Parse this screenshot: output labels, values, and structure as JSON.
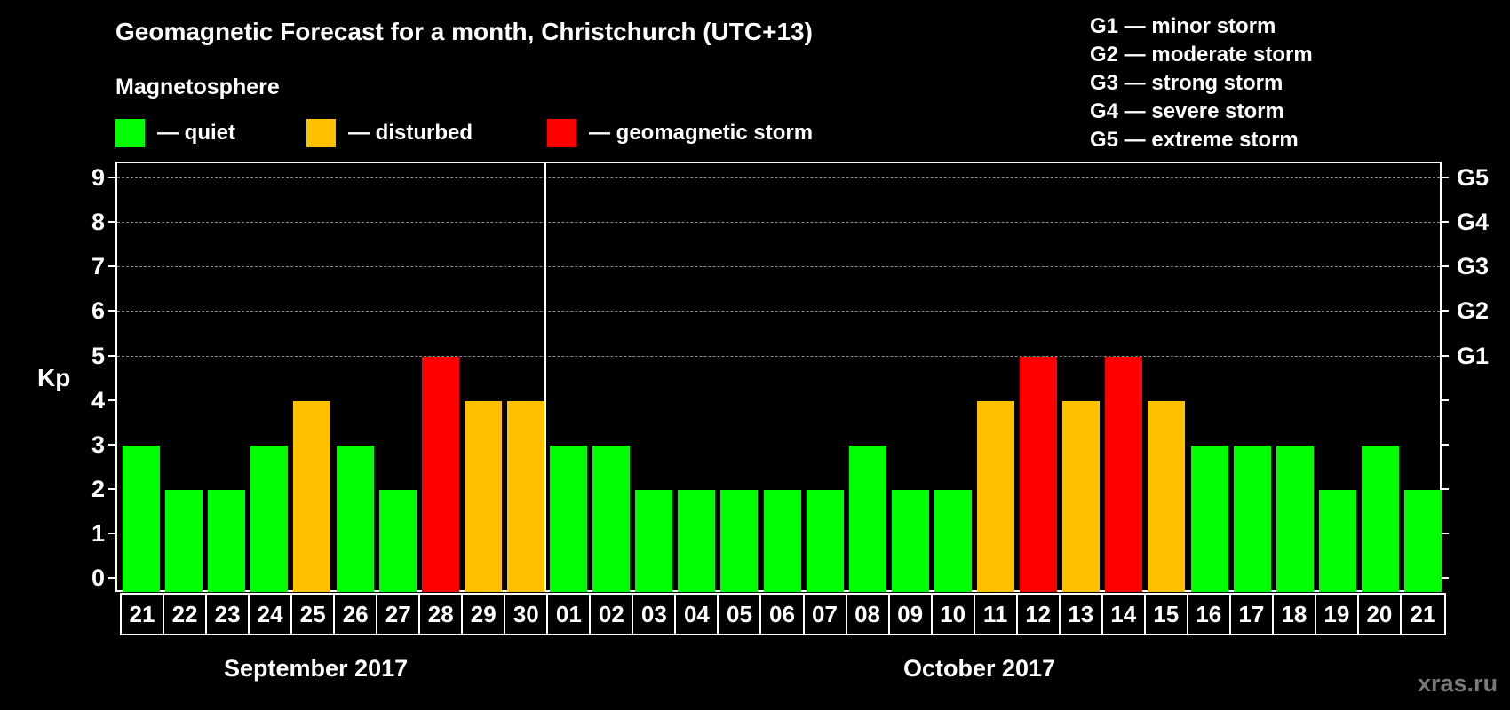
{
  "header": {
    "title": "Geomagnetic Forecast for a month, Christchurch (UTC+13)",
    "subtitle": "Magnetosphere"
  },
  "legend": [
    {
      "label": "— quiet",
      "color": "#00ff00"
    },
    {
      "label": "— disturbed",
      "color": "#ffc000"
    },
    {
      "label": "— geomagnetic storm",
      "color": "#ff0000"
    }
  ],
  "g_legend": [
    "G1 — minor storm",
    "G2 — moderate storm",
    "G3 — strong storm",
    "G4 — severe storm",
    "G5 — extreme storm"
  ],
  "axis": {
    "ylabel": "Kp",
    "yticks": [
      "0",
      "1",
      "2",
      "3",
      "4",
      "5",
      "6",
      "7",
      "8",
      "9"
    ],
    "gticks": [
      {
        "value": 5,
        "label": "G1"
      },
      {
        "value": 6,
        "label": "G2"
      },
      {
        "value": 7,
        "label": "G3"
      },
      {
        "value": 8,
        "label": "G4"
      },
      {
        "value": 9,
        "label": "G5"
      }
    ]
  },
  "months": [
    "September 2017",
    "October 2017"
  ],
  "watermark": "xras.ru",
  "chart_data": {
    "type": "bar",
    "title": "Geomagnetic Forecast for a month, Christchurch (UTC+13)",
    "subtitle": "Magnetosphere",
    "xlabel": "",
    "ylabel": "Kp",
    "ylim": [
      0,
      9
    ],
    "grid": "dashed horizontal at Kp 5-9",
    "categories": [
      "21",
      "22",
      "23",
      "24",
      "25",
      "26",
      "27",
      "28",
      "29",
      "30",
      "01",
      "02",
      "03",
      "04",
      "05",
      "06",
      "07",
      "08",
      "09",
      "10",
      "11",
      "12",
      "13",
      "14",
      "15",
      "16",
      "17",
      "18",
      "19",
      "20",
      "21"
    ],
    "month_groups": [
      {
        "name": "September 2017",
        "count": 10
      },
      {
        "name": "October 2017",
        "count": 21
      }
    ],
    "values": [
      3,
      2,
      2,
      3,
      4,
      3,
      2,
      5,
      4,
      4,
      3,
      3,
      2,
      2,
      2,
      2,
      2,
      3,
      2,
      2,
      4,
      5,
      4,
      5,
      4,
      3,
      3,
      3,
      2,
      3,
      2
    ],
    "status": [
      "quiet",
      "quiet",
      "quiet",
      "quiet",
      "disturbed",
      "quiet",
      "quiet",
      "storm",
      "disturbed",
      "disturbed",
      "quiet",
      "quiet",
      "quiet",
      "quiet",
      "quiet",
      "quiet",
      "quiet",
      "quiet",
      "quiet",
      "quiet",
      "disturbed",
      "storm",
      "disturbed",
      "storm",
      "disturbed",
      "quiet",
      "quiet",
      "quiet",
      "quiet",
      "quiet",
      "quiet"
    ],
    "colors": {
      "quiet": "#00ff00",
      "disturbed": "#ffc000",
      "storm": "#ff0000"
    },
    "legend": [
      "— quiet",
      "— disturbed",
      "— geomagnetic storm"
    ],
    "right_axis": {
      "5": "G1",
      "6": "G2",
      "7": "G3",
      "8": "G4",
      "9": "G5"
    }
  }
}
